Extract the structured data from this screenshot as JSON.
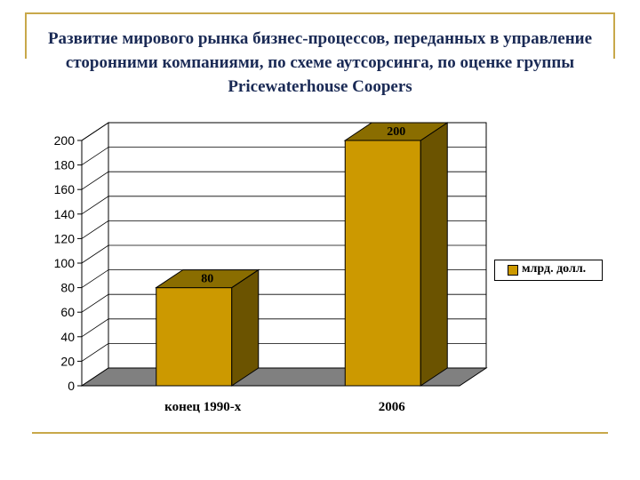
{
  "title": "Развитие мирового рынка бизнес-процессов, переданных в управление сторонними компаниями, по схеме аутсорсинга, по оценке группы Pricewaterhouse Coopers",
  "colors": {
    "bar_front": "#cc9900",
    "bar_side": "#6b5300",
    "bar_top": "#8a6d00",
    "floor": "#808080",
    "frame": "#c8a84a",
    "title": "#1a2a55"
  },
  "chart_data": {
    "type": "bar",
    "categories": [
      "конец 1990-х",
      "2006"
    ],
    "series": [
      {
        "name": "млрд. долл.",
        "values": [
          80,
          200
        ]
      }
    ],
    "data_labels": [
      "80",
      "200"
    ],
    "yticks": [
      "0",
      "20",
      "40",
      "60",
      "80",
      "100",
      "120",
      "140",
      "160",
      "180",
      "200"
    ],
    "ylim": [
      0,
      200
    ],
    "grid": true,
    "legend_position": "right",
    "three_d": true
  }
}
